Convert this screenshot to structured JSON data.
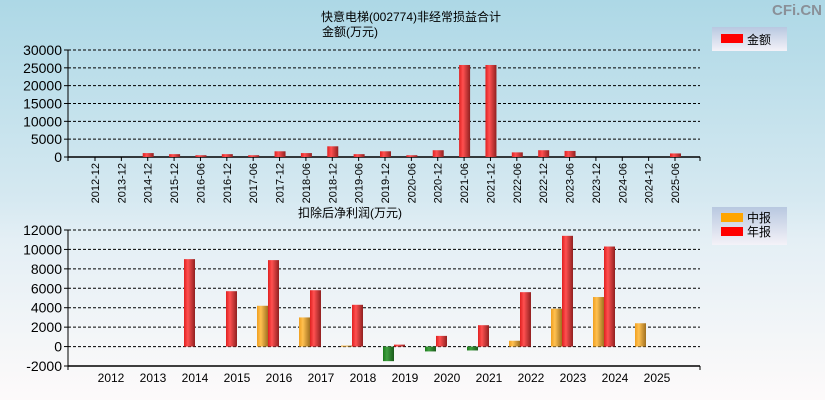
{
  "watermark": "CFi.CN",
  "chart_data": [
    {
      "type": "bar",
      "title": "快意电梯(002774)非经常损益合计",
      "ylabel": "金额(万元)",
      "ylim": [
        0,
        30000
      ],
      "yticks": [
        0,
        5000,
        10000,
        15000,
        20000,
        25000,
        30000
      ],
      "grid": true,
      "legend": "top-right",
      "categories": [
        "2012-12",
        "2013-12",
        "2014-12",
        "2015-12",
        "2016-06",
        "2016-12",
        "2017-06",
        "2017-12",
        "2018-06",
        "2018-12",
        "2019-06",
        "2019-12",
        "2020-06",
        "2020-12",
        "2021-06",
        "2021-12",
        "2022-06",
        "2022-12",
        "2023-06",
        "2023-12",
        "2024-06",
        "2024-12",
        "2025-06"
      ],
      "series": [
        {
          "name": "金额",
          "color": "#ff0000",
          "values": [
            0,
            0,
            1100,
            800,
            500,
            800,
            500,
            1600,
            1100,
            3000,
            800,
            1600,
            500,
            1900,
            25800,
            25800,
            1300,
            1900,
            1700,
            0,
            0,
            0,
            1000
          ]
        }
      ]
    },
    {
      "type": "bar",
      "title": "扣除后净利润(万元)",
      "ylim": [
        -2000,
        12000
      ],
      "yticks": [
        -2000,
        0,
        2000,
        4000,
        6000,
        8000,
        10000,
        12000
      ],
      "grid": true,
      "legend": "top-right",
      "categories": [
        "2012",
        "2013",
        "2014",
        "2015",
        "2016",
        "2017",
        "2018",
        "2019",
        "2020",
        "2021",
        "2022",
        "2023",
        "2024",
        "2025"
      ],
      "series": [
        {
          "name": "中报",
          "color": "#ffa500",
          "values": [
            null,
            null,
            null,
            null,
            4200,
            3000,
            100,
            -1500,
            -500,
            -400,
            600,
            3900,
            5100,
            2400
          ]
        },
        {
          "name": "年报",
          "color": "#ff0000",
          "values": [
            null,
            null,
            9000,
            5700,
            8900,
            5800,
            4300,
            200,
            1100,
            2200,
            5600,
            11400,
            10300,
            null
          ]
        }
      ]
    }
  ]
}
